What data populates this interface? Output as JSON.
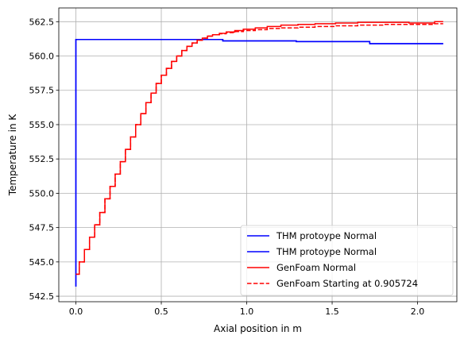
{
  "chart_data": {
    "type": "line",
    "title": "",
    "xlabel": "Axial position in m",
    "ylabel": "Temperature in K",
    "xlim": [
      -0.1,
      2.23
    ],
    "ylim": [
      542.1,
      563.5
    ],
    "xticks": [
      0.0,
      0.5,
      1.0,
      1.5,
      2.0
    ],
    "xtick_labels": [
      "0.0",
      "0.5",
      "1.0",
      "1.5",
      "2.0"
    ],
    "yticks": [
      542.5,
      545.0,
      547.5,
      550.0,
      552.5,
      555.0,
      557.5,
      560.0,
      562.5
    ],
    "ytick_labels": [
      "542.5",
      "545.0",
      "547.5",
      "550.0",
      "552.5",
      "555.0",
      "557.5",
      "560.0",
      "562.5"
    ],
    "grid": true,
    "legend_position": "bottom-right",
    "series": [
      {
        "name": "THM protoype Normal",
        "color": "#0000ff",
        "dash": "solid",
        "step": true,
        "x": [
          0.0,
          0.0,
          0.86,
          1.29,
          1.72,
          2.15
        ],
        "y": [
          543.2,
          561.2,
          561.1,
          561.05,
          560.9,
          560.9
        ]
      },
      {
        "name": "THM protoype Normal",
        "color": "#0000ff",
        "dash": "solid",
        "step": true,
        "x": [
          0.0,
          0.0,
          0.86,
          1.29,
          1.72,
          2.15
        ],
        "y": [
          543.2,
          561.2,
          561.1,
          561.05,
          560.9,
          560.9
        ]
      },
      {
        "name": "GenFoam Normal",
        "color": "#ff0000",
        "dash": "solid",
        "step": true,
        "x": [
          0.0,
          0.02,
          0.05,
          0.08,
          0.11,
          0.14,
          0.17,
          0.2,
          0.23,
          0.26,
          0.29,
          0.32,
          0.35,
          0.38,
          0.41,
          0.44,
          0.47,
          0.5,
          0.53,
          0.56,
          0.59,
          0.62,
          0.65,
          0.68,
          0.71,
          0.74,
          0.77,
          0.8,
          0.84,
          0.88,
          0.93,
          0.98,
          1.05,
          1.12,
          1.2,
          1.3,
          1.4,
          1.52,
          1.65,
          1.8,
          1.95,
          2.1,
          2.15
        ],
        "y": [
          544.1,
          545.0,
          545.9,
          546.8,
          547.7,
          548.6,
          549.6,
          550.5,
          551.4,
          552.3,
          553.2,
          554.1,
          555.0,
          555.8,
          556.6,
          557.3,
          558.0,
          558.6,
          559.1,
          559.6,
          560.0,
          560.4,
          560.7,
          560.95,
          561.15,
          561.3,
          561.45,
          561.55,
          561.65,
          561.75,
          561.85,
          561.95,
          562.05,
          562.15,
          562.25,
          562.3,
          562.35,
          562.4,
          562.45,
          562.45,
          562.4,
          562.5,
          562.5
        ]
      },
      {
        "name": "GenFoam Starting at 0.905724",
        "color": "#ff0000",
        "dash": "dashed",
        "step": true,
        "x": [
          0.0,
          0.02,
          0.05,
          0.08,
          0.11,
          0.14,
          0.17,
          0.2,
          0.23,
          0.26,
          0.29,
          0.32,
          0.35,
          0.38,
          0.41,
          0.44,
          0.47,
          0.5,
          0.53,
          0.56,
          0.59,
          0.62,
          0.65,
          0.68,
          0.71,
          0.74,
          0.77,
          0.8,
          0.84,
          0.88,
          0.93,
          0.98,
          1.05,
          1.12,
          1.2,
          1.3,
          1.4,
          1.52,
          1.65,
          1.8,
          1.95,
          2.1,
          2.15
        ],
        "y": [
          544.1,
          545.0,
          545.9,
          546.8,
          547.7,
          548.6,
          549.6,
          550.5,
          551.4,
          552.3,
          553.2,
          554.1,
          555.0,
          555.8,
          556.6,
          557.3,
          558.0,
          558.6,
          559.1,
          559.6,
          560.0,
          560.4,
          560.7,
          560.95,
          561.15,
          561.3,
          561.45,
          561.55,
          561.62,
          561.7,
          561.78,
          561.85,
          561.92,
          562.0,
          562.05,
          562.1,
          562.15,
          562.2,
          562.25,
          562.3,
          562.3,
          562.35,
          562.35
        ]
      }
    ]
  }
}
